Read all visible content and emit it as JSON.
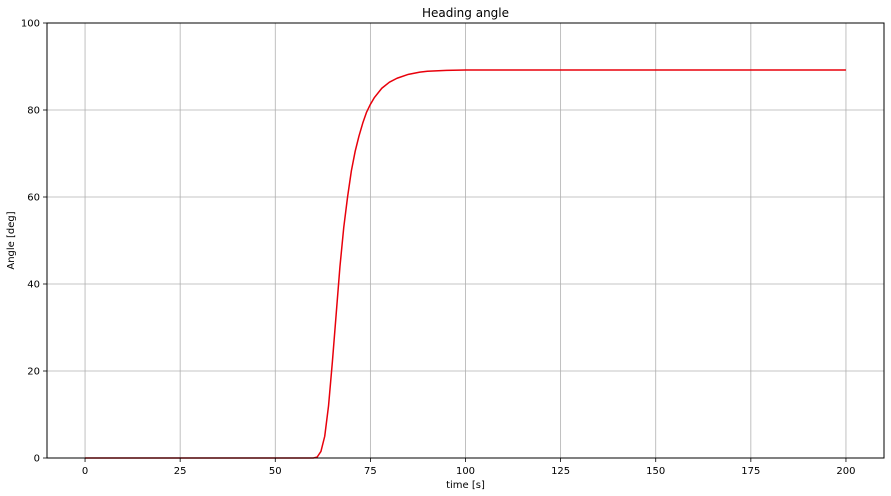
{
  "chart_data": {
    "type": "line",
    "title": "Heading angle",
    "xlabel": "time [s]",
    "ylabel": "Angle [deg]",
    "xlim": [
      -10,
      210
    ],
    "ylim": [
      0,
      100
    ],
    "xticks": [
      0,
      25,
      50,
      75,
      100,
      125,
      150,
      175,
      200
    ],
    "yticks": [
      0,
      20,
      40,
      60,
      80,
      100
    ],
    "xtick_labels": [
      "0",
      "25",
      "50",
      "75",
      "100",
      "125",
      "150",
      "175",
      "200"
    ],
    "ytick_labels": [
      "0",
      "20",
      "40",
      "60",
      "80",
      "100"
    ],
    "grid": true,
    "legend": false,
    "series": [
      {
        "color": "#e8000b",
        "x": [
          0,
          10,
          20,
          30,
          40,
          50,
          58,
          60,
          61,
          62,
          63,
          64,
          65,
          66,
          67,
          68,
          69,
          70,
          71,
          72,
          73,
          74,
          75,
          76,
          78,
          80,
          82,
          85,
          88,
          90,
          95,
          100,
          110,
          125,
          150,
          175,
          200
        ],
        "y": [
          0,
          0,
          0,
          0,
          0,
          0,
          0,
          0,
          0.2,
          1.5,
          5,
          12,
          22,
          33,
          44,
          53,
          60,
          66,
          70.5,
          74,
          77,
          79.5,
          81.3,
          82.8,
          85,
          86.4,
          87.3,
          88.2,
          88.7,
          88.9,
          89.1,
          89.2,
          89.2,
          89.2,
          89.2,
          89.2,
          89.2
        ]
      }
    ]
  }
}
